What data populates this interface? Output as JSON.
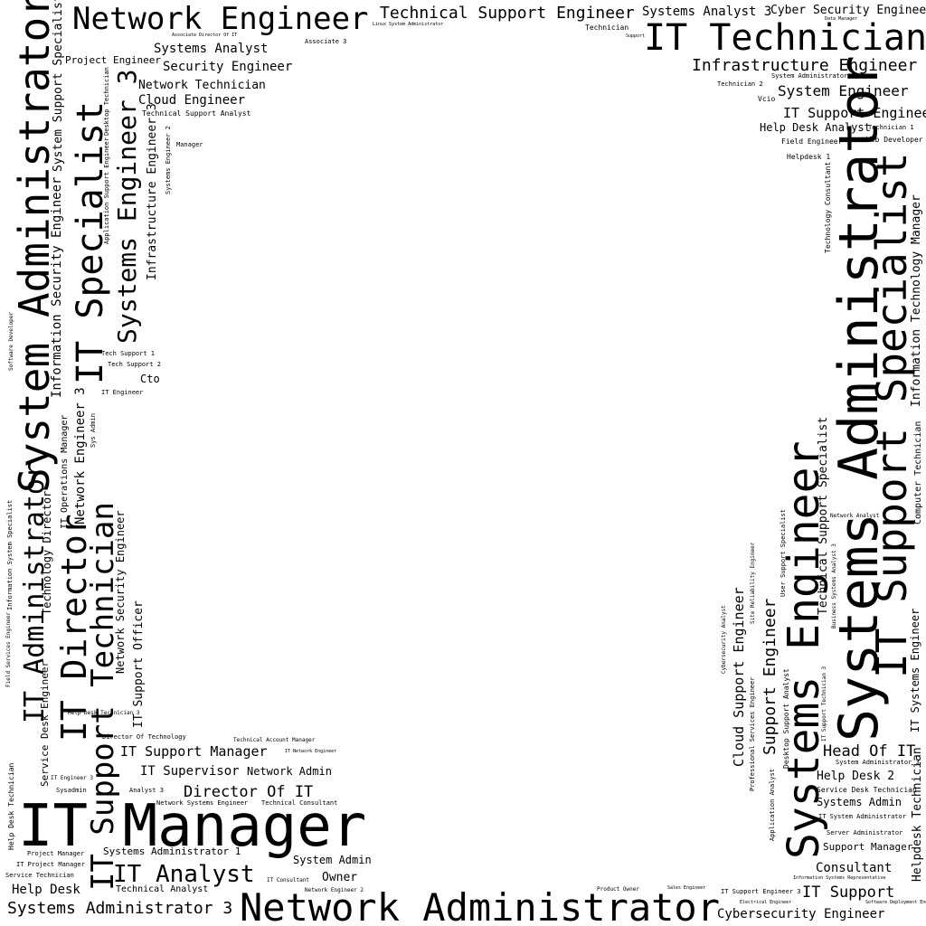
{
  "words": [
    "Network Engineer",
    "Technical Support Engineer",
    "Systems Analyst 3",
    "Cyber Security Engineer",
    "IT Technician",
    "Infrastructure Engineer",
    "System Engineer",
    "IT Support Engineer",
    "Help Desk Analyst",
    "Systems Analyst",
    "Associate 3",
    "Project Engineer",
    "Security Engineer",
    "Network Technician",
    "Cloud Engineer",
    "Technical Support Analyst",
    "Technician",
    "Technician 2",
    "Vcio",
    "System Administrator 1",
    "Technician 1",
    "Field Engineer",
    "Web Developer",
    "Helpdesk 1",
    "Manager",
    "Tech Support 1",
    "Tech Support 2",
    "Cto",
    "IT Engineer",
    "IT Support Manager",
    "IT Supervisor",
    "Network Admin",
    "Director Of IT",
    "IT Manager",
    "IT Analyst",
    "Systems Administrator 1",
    "System Admin",
    "Owner",
    "Help Desk",
    "Technical Analyst",
    "Systems Administrator 3",
    "Network Administrator",
    "Cybersecurity Engineer",
    "IT Support",
    "Consultant",
    "Support Manager",
    "Head Of IT",
    "Help Desk 2",
    "Systems Admin",
    "Service Desk Technician",
    "Director Of Technology",
    "Technical Account Manager",
    "Sysadmin",
    "Analyst 3",
    "Network Systems Engineer",
    "Technical Consultant",
    "Project Manager",
    "IT Project Manager",
    "Service Technician",
    "IT Consultant",
    "Network Engineer 2",
    "Product Owner",
    "IT Support Engineer 3",
    "Server Administrator",
    "IT System Administrator",
    "Help Desk Technician 3",
    "IT Engineer 3",
    "Network Analyst",
    "System Administrator 3",
    "Linux System Administrator",
    "Associate Director Of IT",
    "IT Network Engineer",
    "Information Systems Representative",
    "Sales Engineer",
    "Electrical Engineer",
    "Software Deployment Engineer",
    "Data Manager",
    "Support",
    "System Administrator",
    "IT Specialist",
    "Systems Engineer 3",
    "Information Security Engineer",
    "System Support Specialist",
    "Infrastructure Engineer 3",
    "Systems Engineer 2",
    "Application Support Engineer",
    "Desktop Technician",
    "Network Engineer 3",
    "IT Operations Manager",
    "Technology Director",
    "IT Administrator",
    "IT Director",
    "IT Support Technician",
    "Network Security Engineer",
    "IT Support Officer",
    "Service Desk Engineer",
    "Help Desk Technician",
    "Information System Specialist",
    "Field Services Engineer",
    "Software Developer",
    "Sys Admin",
    "Systems Administrator",
    "IT Support Specialist",
    "Systems Engineer",
    "Information Technology Manager",
    "Technical Support Specialist",
    "Support Engineer",
    "Cloud Support Engineer",
    "Desktop Support Analyst",
    "Professional Services Engineer",
    "Application Analyst",
    "Technology Consultant",
    "Computer Technician",
    "IT Systems Engineer",
    "Helpdesk Technician",
    "User Support Specialist",
    "Site Reliability Engineer",
    "Cybersecurity Analyst",
    "Business Systems Analyst 3",
    "IT Support Technician 3"
  ]
}
